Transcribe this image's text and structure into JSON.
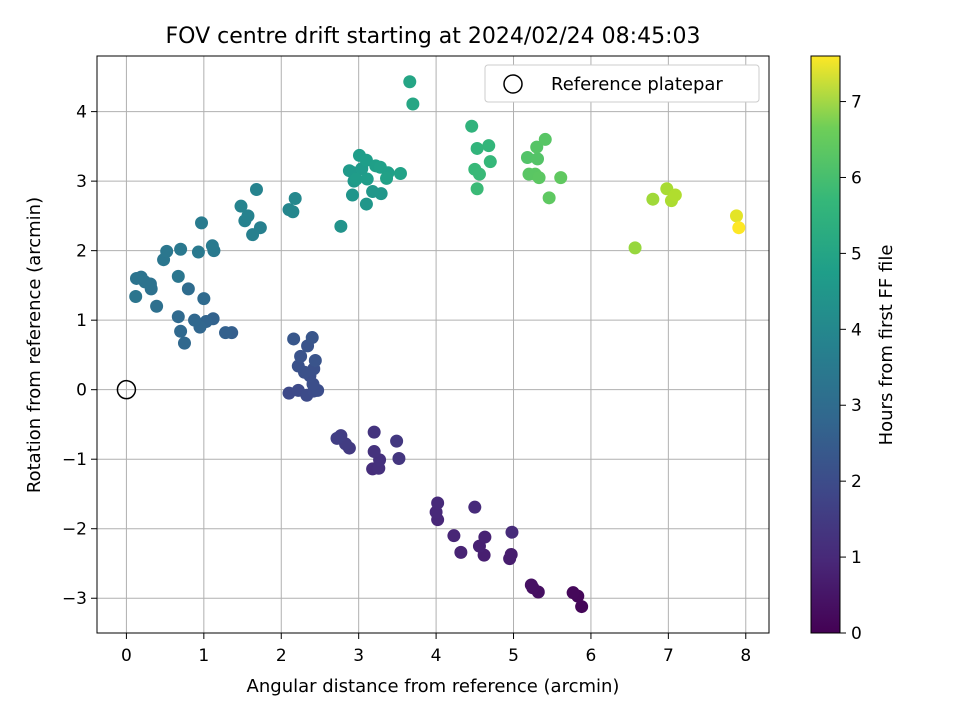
{
  "chart_data": {
    "type": "scatter",
    "title": "FOV centre drift starting at 2024/02/24 08:45:03",
    "xlabel": "Angular distance from reference (arcmin)",
    "ylabel": "Rotation from reference (arcmin)",
    "xlim": [
      -0.38,
      8.3
    ],
    "ylim": [
      -3.5,
      4.8
    ],
    "x_ticks": [
      0,
      1,
      2,
      3,
      4,
      5,
      6,
      7,
      8
    ],
    "y_ticks": [
      -3,
      -2,
      -1,
      0,
      1,
      2,
      3,
      4
    ],
    "grid": true,
    "legend": {
      "position": "top-right",
      "entries": [
        {
          "label": "Reference platepar",
          "marker": "open-circle"
        }
      ]
    },
    "reference_point": {
      "x": 0,
      "y": 0
    },
    "colorbar": {
      "label": "Hours from first FF file",
      "colormap": "viridis",
      "range": [
        0,
        7.6
      ],
      "ticks": [
        0,
        1,
        2,
        3,
        4,
        5,
        6,
        7
      ]
    },
    "series": [
      {
        "points": [
          [
            5.88,
            -3.12
          ],
          [
            5.83,
            -2.97
          ],
          [
            5.77,
            -2.92
          ],
          [
            5.32,
            -2.91
          ],
          [
            5.25,
            -2.85
          ],
          [
            5.23,
            -2.81
          ],
          [
            4.95,
            -2.43
          ],
          [
            4.97,
            -2.37
          ],
          [
            4.62,
            -2.38
          ],
          [
            4.56,
            -2.25
          ],
          [
            4.63,
            -2.12
          ],
          [
            4.32,
            -2.34
          ],
          [
            4.23,
            -2.1
          ],
          [
            4.02,
            -1.87
          ],
          [
            4.0,
            -1.76
          ],
          [
            4.02,
            -1.63
          ],
          [
            4.5,
            -1.69
          ],
          [
            4.98,
            -2.05
          ],
          [
            3.18,
            -1.14
          ],
          [
            3.26,
            -1.13
          ],
          [
            3.27,
            -1.01
          ],
          [
            3.2,
            -0.89
          ],
          [
            3.2,
            -0.61
          ],
          [
            3.52,
            -0.99
          ],
          [
            3.49,
            -0.74
          ],
          [
            2.88,
            -0.84
          ],
          [
            2.83,
            -0.78
          ],
          [
            2.77,
            -0.66
          ],
          [
            2.72,
            -0.7
          ],
          [
            2.1,
            -0.05
          ],
          [
            2.22,
            -0.01
          ],
          [
            2.33,
            -0.08
          ],
          [
            2.42,
            -0.02
          ],
          [
            2.47,
            -0.01
          ],
          [
            2.41,
            0.08
          ],
          [
            2.37,
            0.2
          ],
          [
            2.42,
            0.3
          ],
          [
            2.3,
            0.25
          ],
          [
            2.22,
            0.34
          ],
          [
            2.25,
            0.48
          ],
          [
            2.44,
            0.42
          ],
          [
            2.34,
            0.63
          ],
          [
            2.4,
            0.75
          ],
          [
            2.16,
            0.73
          ],
          [
            1.36,
            0.82
          ],
          [
            1.28,
            0.82
          ],
          [
            1.12,
            1.02
          ],
          [
            1.03,
            0.98
          ],
          [
            0.95,
            0.9
          ],
          [
            0.88,
            1.0
          ],
          [
            0.75,
            0.67
          ],
          [
            0.7,
            0.84
          ],
          [
            0.67,
            1.05
          ],
          [
            1.0,
            1.31
          ],
          [
            0.8,
            1.45
          ],
          [
            0.39,
            1.2
          ],
          [
            0.32,
            1.45
          ],
          [
            0.31,
            1.52
          ],
          [
            0.24,
            1.55
          ],
          [
            0.19,
            1.62
          ],
          [
            0.13,
            1.6
          ],
          [
            0.12,
            1.34
          ],
          [
            0.67,
            1.63
          ],
          [
            0.48,
            1.87
          ],
          [
            0.52,
            1.99
          ],
          [
            0.7,
            2.02
          ],
          [
            0.93,
            1.98
          ],
          [
            1.13,
            2.0
          ],
          [
            1.11,
            2.07
          ],
          [
            0.97,
            2.4
          ],
          [
            1.63,
            2.23
          ],
          [
            1.73,
            2.33
          ],
          [
            1.53,
            2.43
          ],
          [
            1.57,
            2.5
          ],
          [
            1.48,
            2.64
          ],
          [
            1.68,
            2.88
          ],
          [
            2.1,
            2.59
          ],
          [
            2.15,
            2.56
          ],
          [
            2.18,
            2.75
          ],
          [
            2.77,
            2.35
          ],
          [
            2.92,
            2.8
          ],
          [
            3.1,
            2.67
          ],
          [
            3.29,
            2.82
          ],
          [
            3.18,
            2.85
          ],
          [
            2.94,
            3.0
          ],
          [
            2.93,
            3.12
          ],
          [
            2.88,
            3.15
          ],
          [
            3.04,
            3.18
          ],
          [
            2.97,
            3.03
          ],
          [
            3.11,
            3.03
          ],
          [
            3.01,
            3.37
          ],
          [
            3.1,
            3.3
          ],
          [
            3.22,
            3.22
          ],
          [
            3.28,
            3.2
          ],
          [
            3.38,
            3.12
          ],
          [
            3.36,
            3.04
          ],
          [
            3.54,
            3.11
          ],
          [
            3.66,
            4.43
          ],
          [
            3.7,
            4.11
          ],
          [
            4.46,
            3.79
          ],
          [
            4.53,
            3.47
          ],
          [
            4.68,
            3.51
          ],
          [
            4.7,
            3.28
          ],
          [
            4.5,
            3.17
          ],
          [
            4.56,
            3.1
          ],
          [
            4.53,
            2.89
          ],
          [
            5.18,
            3.34
          ],
          [
            5.31,
            3.32
          ],
          [
            5.3,
            3.49
          ],
          [
            5.41,
            3.6
          ],
          [
            5.2,
            3.1
          ],
          [
            5.28,
            3.1
          ],
          [
            5.33,
            3.05
          ],
          [
            5.46,
            2.76
          ],
          [
            5.61,
            3.05
          ],
          [
            6.57,
            2.04
          ],
          [
            6.8,
            2.74
          ],
          [
            6.98,
            2.89
          ],
          [
            7.04,
            2.72
          ],
          [
            7.09,
            2.8
          ],
          [
            7.88,
            2.5
          ],
          [
            7.91,
            2.33
          ]
        ],
        "hours": [
          0.1,
          0.12,
          0.15,
          0.3,
          0.33,
          0.35,
          0.6,
          0.62,
          0.65,
          0.7,
          0.72,
          0.75,
          0.8,
          0.85,
          0.88,
          0.9,
          0.92,
          0.95,
          1.0,
          1.05,
          1.08,
          1.1,
          1.15,
          1.2,
          1.25,
          1.3,
          1.35,
          1.38,
          1.42,
          1.7,
          1.72,
          1.75,
          1.78,
          1.8,
          1.82,
          1.85,
          1.88,
          1.9,
          1.92,
          1.95,
          1.98,
          2.0,
          2.03,
          2.06,
          2.3,
          2.35,
          2.4,
          2.45,
          2.5,
          2.52,
          2.55,
          2.58,
          2.6,
          2.62,
          2.65,
          2.8,
          2.82,
          2.85,
          2.88,
          2.9,
          2.92,
          2.95,
          2.98,
          3.0,
          3.02,
          3.05,
          3.08,
          3.1,
          3.12,
          3.15,
          3.3,
          3.32,
          3.35,
          3.38,
          3.4,
          3.42,
          3.5,
          3.52,
          3.55,
          3.9,
          3.95,
          3.98,
          4.0,
          4.02,
          4.05,
          4.08,
          4.1,
          4.12,
          4.15,
          4.18,
          4.2,
          4.22,
          4.25,
          4.28,
          4.3,
          4.32,
          4.35,
          4.45,
          4.48,
          4.9,
          4.95,
          5.0,
          5.05,
          5.1,
          5.12,
          5.15,
          5.5,
          5.52,
          5.55,
          5.58,
          5.6,
          5.62,
          5.65,
          5.68,
          5.7,
          6.4,
          6.5,
          6.6,
          6.65,
          6.7,
          7.3,
          7.6
        ]
      }
    ]
  }
}
